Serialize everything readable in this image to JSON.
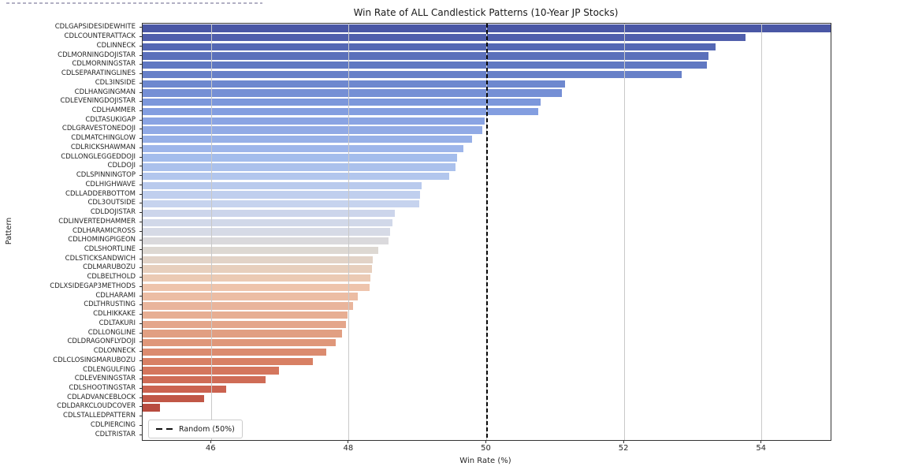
{
  "chart_data": {
    "type": "bar",
    "orientation": "horizontal",
    "title": "Win Rate of ALL Candlestick Patterns (10-Year JP Stocks)",
    "xlabel": "Win Rate (%)",
    "ylabel": "Pattern",
    "xlim": [
      45,
      55
    ],
    "xticks": [
      46,
      48,
      50,
      52,
      54
    ],
    "grid": "vertical, light gray, drawn over bars",
    "legend_position": "lower-left",
    "reference_line": {
      "value": 50,
      "label": "Random (50%)",
      "style": "dashed-black"
    },
    "note": "Top bar is clipped at right axis limit (value >= 55); bottom three patterns have no visible bar (value <= 45)",
    "bars": [
      {
        "pattern": "CDLGAPSIDESIDEWHITE",
        "win_rate": 55.0
      },
      {
        "pattern": "CDLCOUNTERATTACK",
        "win_rate": 53.76
      },
      {
        "pattern": "CDLINNECK",
        "win_rate": 53.33
      },
      {
        "pattern": "CDLMORNINGDOJISTAR",
        "win_rate": 53.23
      },
      {
        "pattern": "CDLMORNINGSTAR",
        "win_rate": 53.2
      },
      {
        "pattern": "CDLSEPARATINGLINES",
        "win_rate": 52.83
      },
      {
        "pattern": "CDL3INSIDE",
        "win_rate": 51.14
      },
      {
        "pattern": "CDLHANGINGMAN",
        "win_rate": 51.09
      },
      {
        "pattern": "CDLEVENINGDOJISTAR",
        "win_rate": 50.78
      },
      {
        "pattern": "CDLHAMMER",
        "win_rate": 50.75
      },
      {
        "pattern": "CDLTASUKIGAP",
        "win_rate": 49.97
      },
      {
        "pattern": "CDLGRAVESTONEDOJI",
        "win_rate": 49.94
      },
      {
        "pattern": "CDLMATCHINGLOW",
        "win_rate": 49.79
      },
      {
        "pattern": "CDLRICKSHAWMAN",
        "win_rate": 49.66
      },
      {
        "pattern": "CDLLONGLEGGEDDOJI",
        "win_rate": 49.57
      },
      {
        "pattern": "CDLDOJI",
        "win_rate": 49.55
      },
      {
        "pattern": "CDLSPINNINGTOP",
        "win_rate": 49.46
      },
      {
        "pattern": "CDLHIGHWAVE",
        "win_rate": 49.05
      },
      {
        "pattern": "CDLLADDERBOTTOM",
        "win_rate": 49.03
      },
      {
        "pattern": "CDL3OUTSIDE",
        "win_rate": 49.02
      },
      {
        "pattern": "CDLDOJISTAR",
        "win_rate": 48.67
      },
      {
        "pattern": "CDLINVERTEDHAMMER",
        "win_rate": 48.63
      },
      {
        "pattern": "CDLHARAMICROSS",
        "win_rate": 48.6
      },
      {
        "pattern": "CDLHOMINGPIGEON",
        "win_rate": 48.57
      },
      {
        "pattern": "CDLSHORTLINE",
        "win_rate": 48.42
      },
      {
        "pattern": "CDLSTICKSANDWICH",
        "win_rate": 48.35
      },
      {
        "pattern": "CDLMARUBOZU",
        "win_rate": 48.33
      },
      {
        "pattern": "CDLBELTHOLD",
        "win_rate": 48.31
      },
      {
        "pattern": "CDLXSIDEGAP3METHODS",
        "win_rate": 48.3
      },
      {
        "pattern": "CDLHARAMI",
        "win_rate": 48.13
      },
      {
        "pattern": "CDLTHRUSTING",
        "win_rate": 48.06
      },
      {
        "pattern": "CDLHIKKAKE",
        "win_rate": 47.98
      },
      {
        "pattern": "CDLTAKURI",
        "win_rate": 47.95
      },
      {
        "pattern": "CDLLONGLINE",
        "win_rate": 47.9
      },
      {
        "pattern": "CDLDRAGONFLYDOJI",
        "win_rate": 47.81
      },
      {
        "pattern": "CDLONNECK",
        "win_rate": 47.67
      },
      {
        "pattern": "CDLCLOSINGMARUBOZU",
        "win_rate": 47.47
      },
      {
        "pattern": "CDLENGULFING",
        "win_rate": 46.98
      },
      {
        "pattern": "CDLEVENINGSTAR",
        "win_rate": 46.79
      },
      {
        "pattern": "CDLSHOOTINGSTAR",
        "win_rate": 46.21
      },
      {
        "pattern": "CDLADVANCEBLOCK",
        "win_rate": 45.89
      },
      {
        "pattern": "CDLDARKCLOUDCOVER",
        "win_rate": 45.25
      },
      {
        "pattern": "CDLSTALLEDPATTERN",
        "win_rate": 45.0
      },
      {
        "pattern": "CDLPIERCING",
        "win_rate": 45.0
      },
      {
        "pattern": "CDLTRISTAR",
        "win_rate": 45.0
      }
    ],
    "colors": {
      "background": "#ffffff",
      "spine": "#333333",
      "gridline": "#c9c9c9",
      "reference_line": "#0a0a0a",
      "artifact_dash": "#b2b0c4",
      "colormap": "coolwarm (blue high win rate at top, red low win rate at bottom)",
      "colormap_stops": [
        {
          "t": 0.0,
          "color": "#4a57a5"
        },
        {
          "t": 0.09,
          "color": "#6078c2"
        },
        {
          "t": 0.2,
          "color": "#829de0"
        },
        {
          "t": 0.32,
          "color": "#a5bdec"
        },
        {
          "t": 0.43,
          "color": "#c6d3ee"
        },
        {
          "t": 0.5,
          "color": "#d6dae6"
        },
        {
          "t": 0.545,
          "color": "#ddd8d2"
        },
        {
          "t": 0.6,
          "color": "#e9cdb9"
        },
        {
          "t": 0.64,
          "color": "#eec3ab"
        },
        {
          "t": 0.77,
          "color": "#df987b"
        },
        {
          "t": 0.82,
          "color": "#d87f63"
        },
        {
          "t": 0.886,
          "color": "#cb6350"
        },
        {
          "t": 0.932,
          "color": "#b84b3f"
        },
        {
          "t": 1.0,
          "color": "#a23227"
        }
      ]
    }
  }
}
